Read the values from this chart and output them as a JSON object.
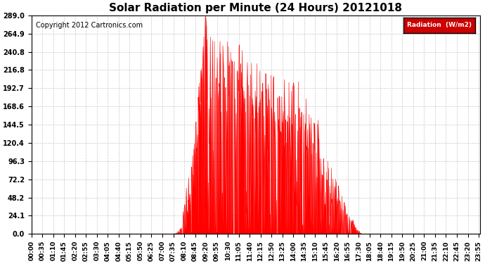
{
  "title": "Solar Radiation per Minute (24 Hours) 20121018",
  "copyright_text": "Copyright 2012 Cartronics.com",
  "legend_label": "Radiation  (W/m2)",
  "yticks": [
    0.0,
    24.1,
    48.2,
    72.2,
    96.3,
    120.4,
    144.5,
    168.6,
    192.7,
    216.8,
    240.8,
    264.9,
    289.0
  ],
  "ymax": 289.0,
  "ymin": 0.0,
  "fill_color": "#ff0000",
  "line_color": "#ff0000",
  "bg_color": "#ffffff",
  "grid_color": "#bbbbbb",
  "zero_line_color": "#ff0000",
  "legend_bg": "#cc0000",
  "legend_text_color": "#ffffff",
  "title_fontsize": 11,
  "copyright_fontsize": 7,
  "tick_fontsize": 6.5,
  "ytick_fontsize": 7
}
